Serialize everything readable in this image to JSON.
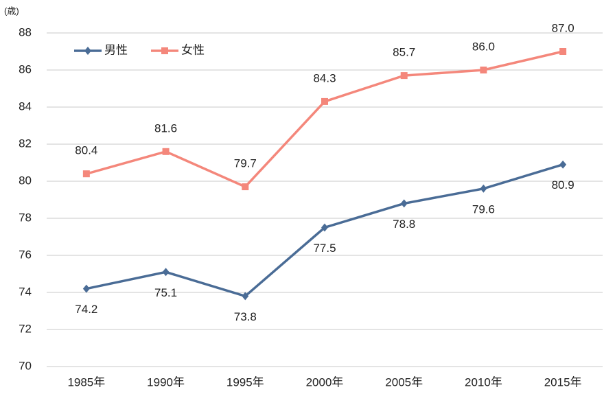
{
  "chart_data": {
    "type": "line",
    "y_label": "(歳)",
    "categories": [
      "1985年",
      "1990年",
      "1995年",
      "2000年",
      "2005年",
      "2010年",
      "2015年"
    ],
    "series": [
      {
        "name": "男性",
        "color": "#4a6c96",
        "marker": "diamond",
        "label_position": "below",
        "values": [
          74.2,
          75.1,
          73.8,
          77.5,
          78.8,
          79.6,
          80.9
        ],
        "value_labels": [
          "74.2",
          "75.1",
          "73.8",
          "77.5",
          "78.8",
          "79.6",
          "80.9"
        ]
      },
      {
        "name": "女性",
        "color": "#f4877b",
        "marker": "square",
        "label_position": "above",
        "values": [
          80.4,
          81.6,
          79.7,
          84.3,
          85.7,
          86.0,
          87.0
        ],
        "value_labels": [
          "80.4",
          "81.6",
          "79.7",
          "84.3",
          "85.7",
          "86.0",
          "87.0"
        ]
      }
    ],
    "ylim": [
      70,
      88
    ],
    "yticks": [
      70,
      72,
      74,
      76,
      78,
      80,
      82,
      84,
      86,
      88
    ],
    "grid": true,
    "legend": "top-left"
  }
}
